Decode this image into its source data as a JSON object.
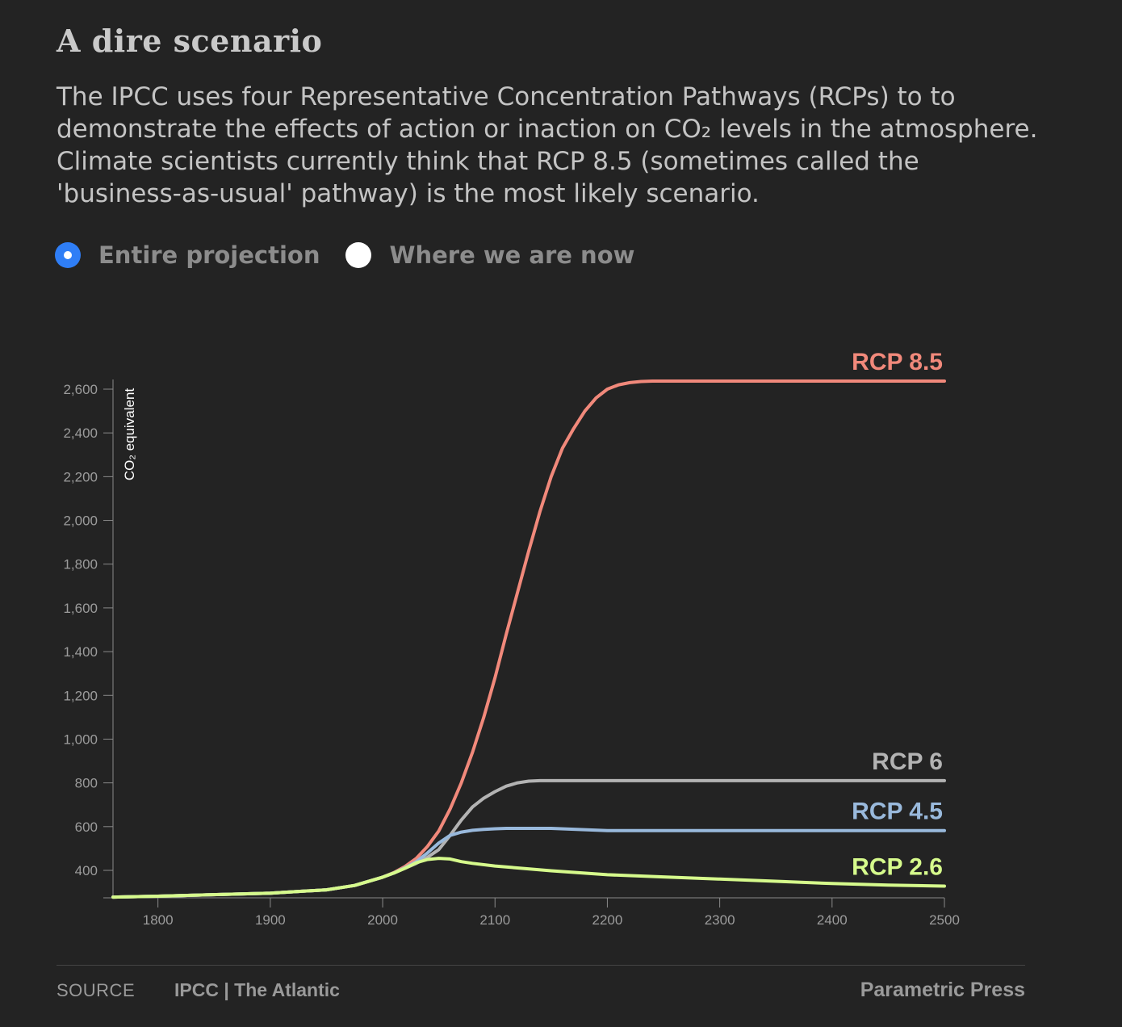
{
  "header": {
    "title": "A dire scenario",
    "description": "The IPCC uses four Representative Concentration Pathways (RCPs) to to demonstrate the effects of action or inaction on CO₂ levels in the atmosphere. Climate scientists currently think that RCP 8.5 (sometimes called the 'business-as-usual' pathway) is the most likely scenario."
  },
  "toggle": {
    "options": [
      {
        "label": "Entire projection",
        "selected": true
      },
      {
        "label": "Where we are now",
        "selected": false
      }
    ],
    "accent_color": "#2f7ef6"
  },
  "chart_data": {
    "type": "line",
    "title": "",
    "xlabel": "",
    "ylabel": "CO₂ equivalent",
    "xlim": [
      1760,
      2500
    ],
    "ylim": [
      270,
      2650
    ],
    "grid": false,
    "x_ticks": [
      1800,
      1900,
      2000,
      2100,
      2200,
      2300,
      2400,
      2500
    ],
    "y_ticks": [
      400,
      600,
      800,
      1000,
      1200,
      1400,
      1600,
      1800,
      2000,
      2200,
      2400,
      2600
    ],
    "x_tick_labels": [
      "1800",
      "1900",
      "2000",
      "2100",
      "2200",
      "2300",
      "2400",
      "2500"
    ],
    "y_tick_labels": [
      "400",
      "600",
      "800",
      "1,000",
      "1,200",
      "1,400",
      "1,600",
      "1,800",
      "2,000",
      "2,200",
      "2,400",
      "2,600"
    ],
    "series": [
      {
        "name": "RCP 8.5",
        "color": "#f1897b",
        "x": [
          1760,
          1800,
          1900,
          1950,
          1975,
          2000,
          2010,
          2020,
          2030,
          2040,
          2050,
          2060,
          2070,
          2080,
          2090,
          2100,
          2110,
          2120,
          2130,
          2140,
          2150,
          2160,
          2170,
          2180,
          2190,
          2200,
          2210,
          2220,
          2230,
          2240,
          2500
        ],
        "values": [
          278,
          282,
          296,
          311,
          331,
          369,
          390,
          418,
          455,
          510,
          580,
          680,
          800,
          940,
          1100,
          1280,
          1480,
          1670,
          1860,
          2040,
          2200,
          2330,
          2420,
          2500,
          2560,
          2600,
          2620,
          2630,
          2635,
          2637,
          2637
        ]
      },
      {
        "name": "RCP 6",
        "color": "#b3b3b3",
        "x": [
          1760,
          1800,
          1900,
          1950,
          1975,
          2000,
          2010,
          2020,
          2030,
          2040,
          2050,
          2060,
          2070,
          2080,
          2090,
          2100,
          2110,
          2120,
          2130,
          2140,
          2150,
          2500
        ],
        "values": [
          278,
          282,
          296,
          311,
          331,
          369,
          388,
          410,
          432,
          460,
          495,
          560,
          630,
          690,
          730,
          760,
          785,
          800,
          808,
          810,
          810,
          810
        ]
      },
      {
        "name": "RCP 4.5",
        "color": "#99b9dc",
        "x": [
          1760,
          1800,
          1900,
          1950,
          1975,
          2000,
          2010,
          2020,
          2030,
          2040,
          2050,
          2060,
          2070,
          2080,
          2090,
          2100,
          2110,
          2150,
          2200,
          2500
        ],
        "values": [
          278,
          282,
          296,
          311,
          331,
          369,
          388,
          412,
          440,
          480,
          525,
          560,
          575,
          583,
          587,
          590,
          592,
          592,
          582,
          582
        ]
      },
      {
        "name": "RCP 2.6",
        "color": "#d6fa8c",
        "x": [
          1760,
          1800,
          1900,
          1950,
          1975,
          2000,
          2010,
          2020,
          2030,
          2040,
          2050,
          2060,
          2070,
          2080,
          2100,
          2150,
          2200,
          2250,
          2300,
          2350,
          2400,
          2450,
          2500
        ],
        "values": [
          278,
          282,
          296,
          311,
          331,
          369,
          388,
          410,
          435,
          450,
          455,
          452,
          440,
          432,
          420,
          398,
          380,
          370,
          360,
          350,
          340,
          333,
          328
        ]
      }
    ]
  },
  "footer": {
    "source_label": "SOURCE",
    "source_value": "IPCC | The Atlantic",
    "credit": "Parametric Press"
  }
}
